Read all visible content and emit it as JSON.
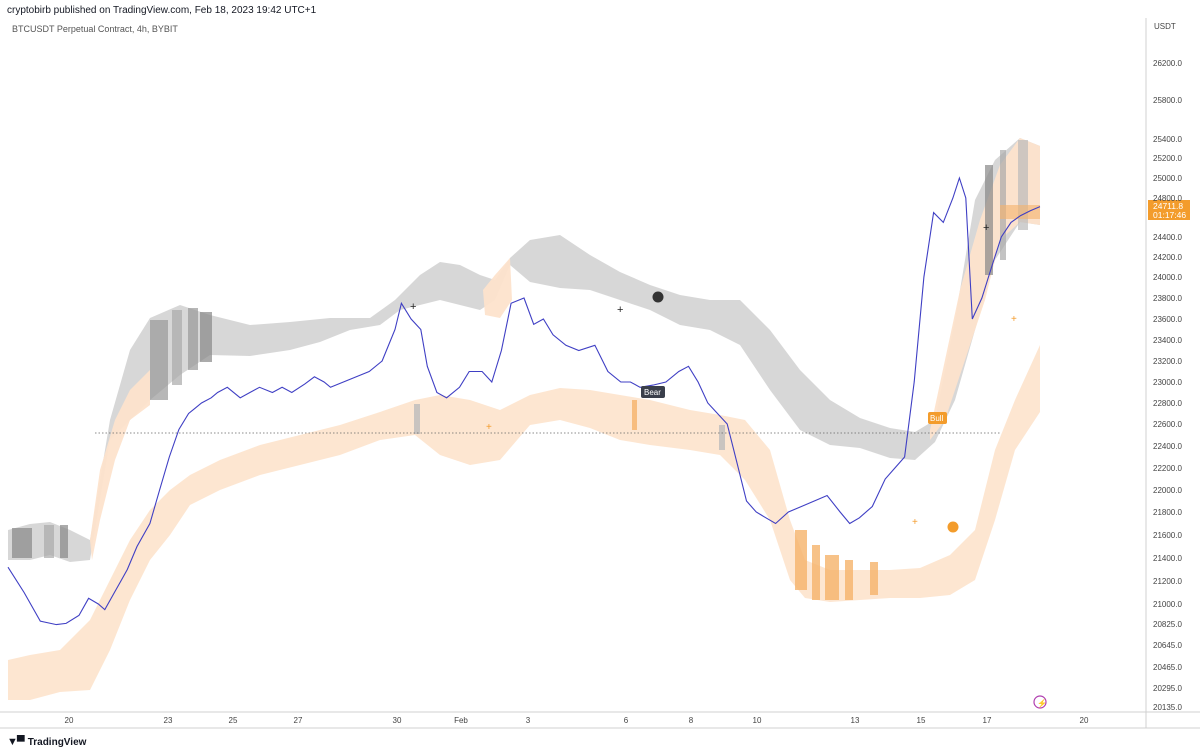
{
  "header": {
    "published": "cryptobirb published on TradingView.com, Feb 18, 2023 19:42 UTC+1",
    "symbol": "BTCUSDT Perpetual Contract, 4h, BYBIT",
    "currency": "USDT",
    "brand": "TradingView"
  },
  "colors": {
    "price_line": "#3f3fc4",
    "bear_band": "#d5d5d5",
    "bull_band": "#fde3cc",
    "accent_orange": "#f39c2c",
    "dark_marker": "#333333"
  },
  "chart_data": {
    "type": "line",
    "title": "",
    "y_axis_ticks": [
      "26200.0",
      "25800.0",
      "25400.0",
      "25200.0",
      "25000.0",
      "24800.0",
      "24400.0",
      "24200.0",
      "24000.0",
      "23800.0",
      "23600.0",
      "23400.0",
      "23200.0",
      "23000.0",
      "22800.0",
      "22600.0",
      "22400.0",
      "22200.0",
      "22000.0",
      "21800.0",
      "21600.0",
      "21400.0",
      "21200.0",
      "21000.0",
      "20825.0",
      "20645.0",
      "20465.0",
      "20295.0",
      "20135.0"
    ],
    "x_axis_ticks": [
      "20",
      "23",
      "25",
      "27",
      "30",
      "Feb",
      "3",
      "6",
      "8",
      "10",
      "13",
      "15",
      "17",
      "20"
    ],
    "last_price": {
      "value": "24711.8",
      "countdown": "01:17:46"
    },
    "series": [
      {
        "values": [
          [
            0,
            21320
          ],
          [
            5,
            21100
          ],
          [
            10,
            20850
          ],
          [
            15,
            20820
          ],
          [
            18,
            20830
          ],
          [
            22,
            20900
          ],
          [
            25,
            21050
          ],
          [
            28,
            21000
          ],
          [
            30,
            20950
          ],
          [
            33,
            21100
          ],
          [
            35,
            21200
          ],
          [
            37,
            21300
          ],
          [
            40,
            21500
          ],
          [
            44,
            21700
          ],
          [
            47,
            22000
          ],
          [
            50,
            22300
          ],
          [
            53,
            22550
          ],
          [
            56,
            22700
          ],
          [
            58,
            22750
          ],
          [
            60,
            22800
          ],
          [
            63,
            22850
          ],
          [
            65,
            22900
          ],
          [
            68,
            22950
          ],
          [
            72,
            22850
          ],
          [
            75,
            22900
          ],
          [
            78,
            22950
          ],
          [
            82,
            22900
          ],
          [
            85,
            22950
          ],
          [
            88,
            22900
          ],
          [
            92,
            22980
          ],
          [
            95,
            23050
          ],
          [
            98,
            23000
          ],
          [
            100,
            22950
          ],
          [
            104,
            23000
          ],
          [
            108,
            23050
          ],
          [
            112,
            23100
          ],
          [
            116,
            23200
          ],
          [
            120,
            23500
          ],
          [
            122,
            23750
          ],
          [
            125,
            23600
          ],
          [
            128,
            23500
          ],
          [
            130,
            23150
          ],
          [
            133,
            22900
          ],
          [
            136,
            22850
          ],
          [
            140,
            22950
          ],
          [
            143,
            23100
          ],
          [
            147,
            23100
          ],
          [
            150,
            23000
          ],
          [
            153,
            23300
          ],
          [
            156,
            23750
          ],
          [
            160,
            23800
          ],
          [
            163,
            23550
          ],
          [
            166,
            23600
          ],
          [
            169,
            23450
          ],
          [
            173,
            23350
          ],
          [
            177,
            23300
          ],
          [
            182,
            23350
          ],
          [
            186,
            23100
          ],
          [
            190,
            23000
          ],
          [
            193,
            23000
          ],
          [
            196,
            22950
          ],
          [
            200,
            22970
          ],
          [
            204,
            23000
          ],
          [
            208,
            23100
          ],
          [
            211,
            23150
          ],
          [
            214,
            23000
          ],
          [
            217,
            22800
          ],
          [
            220,
            22700
          ],
          [
            223,
            22600
          ],
          [
            226,
            22250
          ],
          [
            229,
            21900
          ],
          [
            232,
            21800
          ],
          [
            235,
            21750
          ],
          [
            238,
            21700
          ],
          [
            242,
            21800
          ],
          [
            246,
            21850
          ],
          [
            250,
            21900
          ],
          [
            254,
            21950
          ],
          [
            258,
            21800
          ],
          [
            261,
            21700
          ],
          [
            264,
            21750
          ],
          [
            268,
            21850
          ],
          [
            272,
            22100
          ],
          [
            275,
            22200
          ],
          [
            278,
            22300
          ],
          [
            281,
            23000
          ],
          [
            284,
            24000
          ],
          [
            287,
            24650
          ],
          [
            290,
            24550
          ],
          [
            293,
            24800
          ],
          [
            295,
            25000
          ],
          [
            297,
            24800
          ],
          [
            299,
            23600
          ],
          [
            302,
            23800
          ],
          [
            305,
            24100
          ],
          [
            308,
            24400
          ],
          [
            311,
            24550
          ],
          [
            314,
            24620
          ],
          [
            317,
            24670
          ],
          [
            320,
            24711.8
          ]
        ]
      }
    ]
  },
  "annotations": {
    "bear_label": "Bear",
    "bull_label": "Bull"
  }
}
